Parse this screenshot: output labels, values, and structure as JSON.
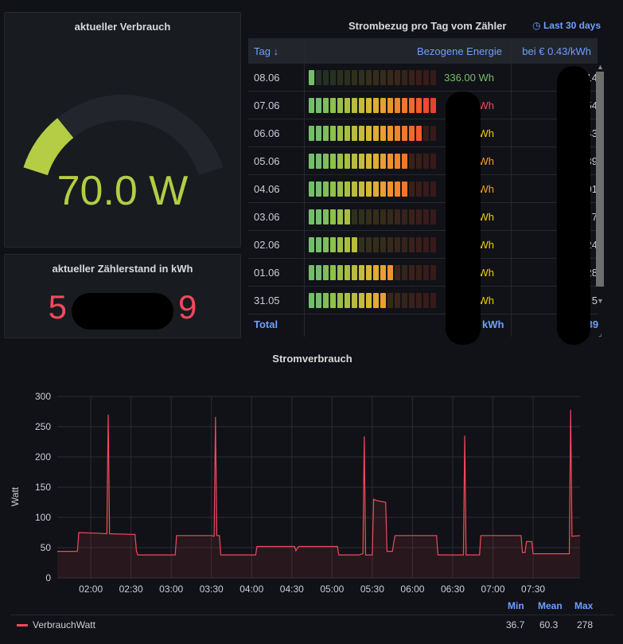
{
  "gauge": {
    "title": "aktueller Verbrauch",
    "value": "70.0 W",
    "value_numeric": 70.0,
    "fill_fraction": 0.23,
    "color": "#b5cc45"
  },
  "meter": {
    "title": "aktueller Zählerstand in kWh",
    "value_prefix": "5",
    "value_suffix": "9",
    "color": "#f2495c"
  },
  "table": {
    "title": "Strombezug pro Tag vom Zähler",
    "range": "Last 30 days",
    "columns": [
      "Tag ↓",
      "Bezogene Energie",
      "bei € 0.43/kWh"
    ],
    "rows": [
      {
        "day": "08.06",
        "fill": 0.04,
        "energy": "336.00 Wh",
        "energy_color": "#73bf69"
      },
      {
        "day": "07.06",
        "fill": 1.0,
        "energy": "Wh",
        "energy_color": "#f2495c"
      },
      {
        "day": "06.06",
        "fill": 0.9,
        "energy": "Wh",
        "energy_color": "#f2cc0c"
      },
      {
        "day": "05.06",
        "fill": 0.8,
        "energy": "Wh",
        "energy_color": "#ff9830"
      },
      {
        "day": "04.06",
        "fill": 0.77,
        "energy": "kWh",
        "energy_color": "#ff9830"
      },
      {
        "day": "03.06",
        "fill": 0.32,
        "energy": "kWh",
        "energy_color": "#f2cc0c"
      },
      {
        "day": "02.06",
        "fill": 0.39,
        "energy": "kWh",
        "energy_color": "#f2cc0c"
      },
      {
        "day": "01.06",
        "fill": 0.68,
        "energy": "kWh",
        "energy_color": "#f2cc0c"
      },
      {
        "day": "31.05",
        "fill": 0.62,
        "energy": "kWh",
        "energy_color": "#f2cc0c"
      }
    ],
    "cost_fragments": [
      "14",
      "54",
      "43",
      "39",
      "01",
      "7",
      "24",
      "28",
      "5"
    ],
    "total_label": "Total",
    "total_energy": "kWh",
    "total_cost": ".89"
  },
  "chart": {
    "title": "Stromverbrauch",
    "legend_headers": [
      "Min",
      "Mean",
      "Max"
    ],
    "legend_series": "VerbrauchWatt",
    "legend_values": [
      "36.7",
      "60.3",
      "278"
    ]
  },
  "chart_data": {
    "type": "line",
    "title": "Stromverbrauch",
    "xlabel": "",
    "ylabel": "Watt",
    "ylim": [
      0,
      300
    ],
    "yticks": [
      0,
      50,
      100,
      150,
      200,
      250,
      300
    ],
    "xticks": [
      "02:00",
      "02:30",
      "03:00",
      "03:30",
      "04:00",
      "04:30",
      "05:00",
      "05:30",
      "06:00",
      "06:30",
      "07:00",
      "07:30"
    ],
    "xlim_minutes": [
      95,
      485
    ],
    "series": [
      {
        "name": "VerbrauchWatt",
        "color": "#f2495c",
        "points": [
          [
            95,
            44
          ],
          [
            110,
            44
          ],
          [
            111,
            75
          ],
          [
            125,
            74
          ],
          [
            132,
            73
          ],
          [
            133,
            270
          ],
          [
            134,
            73
          ],
          [
            150,
            72
          ],
          [
            153,
            72
          ],
          [
            154,
            45
          ],
          [
            155,
            38
          ],
          [
            175,
            38
          ],
          [
            183,
            38
          ],
          [
            184,
            70
          ],
          [
            200,
            70
          ],
          [
            210,
            70
          ],
          [
            212,
            69
          ],
          [
            213,
            266
          ],
          [
            214,
            70
          ],
          [
            216,
            70
          ],
          [
            217,
            38
          ],
          [
            230,
            38
          ],
          [
            243,
            38
          ],
          [
            244,
            52
          ],
          [
            260,
            52
          ],
          [
            270,
            52
          ],
          [
            272,
            52
          ],
          [
            273,
            45
          ],
          [
            275,
            52
          ],
          [
            290,
            52
          ],
          [
            300,
            52
          ],
          [
            304,
            52
          ],
          [
            305,
            38
          ],
          [
            310,
            38
          ],
          [
            320,
            38
          ],
          [
            323,
            40
          ],
          [
            324,
            234
          ],
          [
            325,
            38
          ],
          [
            330,
            38
          ],
          [
            331,
            130
          ],
          [
            333,
            128
          ],
          [
            340,
            125
          ],
          [
            341,
            44
          ],
          [
            345,
            44
          ],
          [
            346,
            58
          ],
          [
            347,
            70
          ],
          [
            365,
            70
          ],
          [
            375,
            70
          ],
          [
            378,
            70
          ],
          [
            379,
            38
          ],
          [
            390,
            38
          ],
          [
            398,
            38
          ],
          [
            399,
            235
          ],
          [
            400,
            38
          ],
          [
            410,
            38
          ],
          [
            411,
            70
          ],
          [
            425,
            70
          ],
          [
            440,
            70
          ],
          [
            441,
            70
          ],
          [
            442,
            42
          ],
          [
            444,
            42
          ],
          [
            445,
            60
          ],
          [
            449,
            60
          ],
          [
            450,
            40
          ],
          [
            465,
            40
          ],
          [
            475,
            40
          ],
          [
            477,
            40
          ],
          [
            478,
            278
          ],
          [
            479,
            69
          ],
          [
            485,
            70
          ]
        ]
      }
    ],
    "stats": {
      "min": 36.7,
      "mean": 60.3,
      "max": 278
    }
  }
}
